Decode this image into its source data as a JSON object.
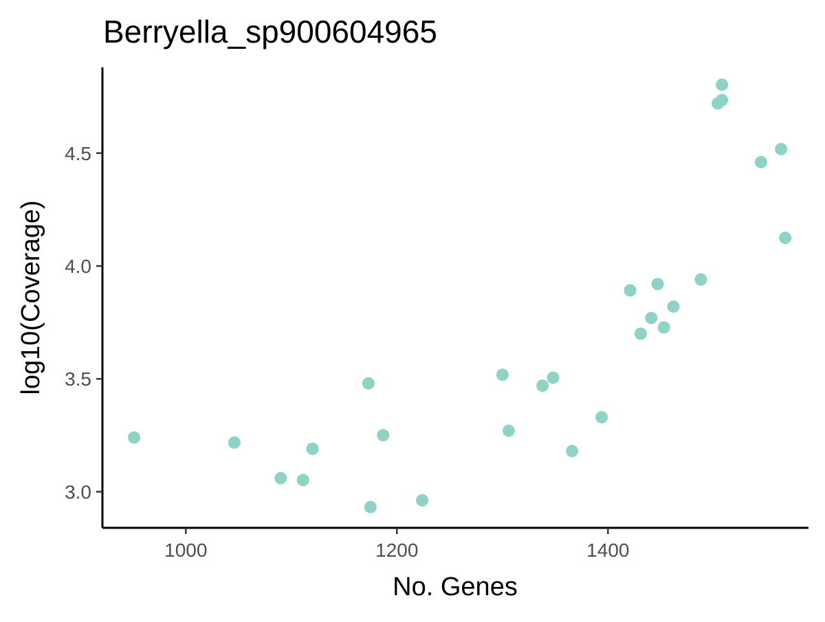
{
  "chart_data": {
    "type": "scatter",
    "title": "Berryella_sp900604965",
    "xlabel": "No. Genes",
    "ylabel": "log10(Coverage)",
    "xlim": [
      921,
      1590
    ],
    "ylim": [
      2.84,
      4.88
    ],
    "x_ticks": [
      1000,
      1200,
      1400
    ],
    "x_tick_labels": [
      "1000",
      "1200",
      "1400"
    ],
    "y_ticks": [
      3.0,
      3.5,
      4.0,
      4.5
    ],
    "y_tick_labels": [
      "3.0",
      "3.5",
      "4.0",
      "4.5"
    ],
    "grid": false,
    "legend": false,
    "point_color": "#8fd3c7",
    "points": [
      {
        "x": 951,
        "y": 3.24
      },
      {
        "x": 1046,
        "y": 3.218
      },
      {
        "x": 1090,
        "y": 3.06
      },
      {
        "x": 1111,
        "y": 3.052
      },
      {
        "x": 1120,
        "y": 3.19
      },
      {
        "x": 1173,
        "y": 3.48
      },
      {
        "x": 1175,
        "y": 2.932
      },
      {
        "x": 1187,
        "y": 3.25
      },
      {
        "x": 1224,
        "y": 2.962
      },
      {
        "x": 1300,
        "y": 3.518
      },
      {
        "x": 1306,
        "y": 3.27
      },
      {
        "x": 1338,
        "y": 3.47
      },
      {
        "x": 1348,
        "y": 3.505
      },
      {
        "x": 1366,
        "y": 3.18
      },
      {
        "x": 1394,
        "y": 3.33
      },
      {
        "x": 1421,
        "y": 3.892
      },
      {
        "x": 1431,
        "y": 3.7
      },
      {
        "x": 1441,
        "y": 3.77
      },
      {
        "x": 1447,
        "y": 3.92
      },
      {
        "x": 1453,
        "y": 3.728
      },
      {
        "x": 1462,
        "y": 3.82
      },
      {
        "x": 1488,
        "y": 3.94
      },
      {
        "x": 1504,
        "y": 4.72
      },
      {
        "x": 1508,
        "y": 4.735
      },
      {
        "x": 1508,
        "y": 4.803
      },
      {
        "x": 1545,
        "y": 4.46
      },
      {
        "x": 1564,
        "y": 4.518
      },
      {
        "x": 1568,
        "y": 4.125
      }
    ]
  }
}
